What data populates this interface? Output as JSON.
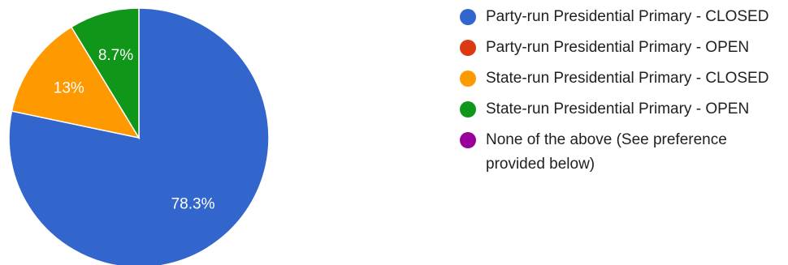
{
  "chart_data": {
    "type": "pie",
    "legend_position": "right",
    "slices": [
      {
        "label": "Party-run Presidential Primary - CLOSED",
        "value": 78.3,
        "value_label": "78.3%",
        "color": "#3366cc"
      },
      {
        "label": "Party-run Presidential Primary - OPEN",
        "value": 0,
        "value_label": "",
        "color": "#dc3912"
      },
      {
        "label": "State-run Presidential Primary - CLOSED",
        "value": 13,
        "value_label": "13%",
        "color": "#ff9900"
      },
      {
        "label": "State-run Presidential Primary - OPEN",
        "value": 8.7,
        "value_label": "8.7%",
        "color": "#109618"
      },
      {
        "label": "None of the above (See preference provided below)",
        "value": 0,
        "value_label": "",
        "color": "#990099"
      }
    ]
  }
}
